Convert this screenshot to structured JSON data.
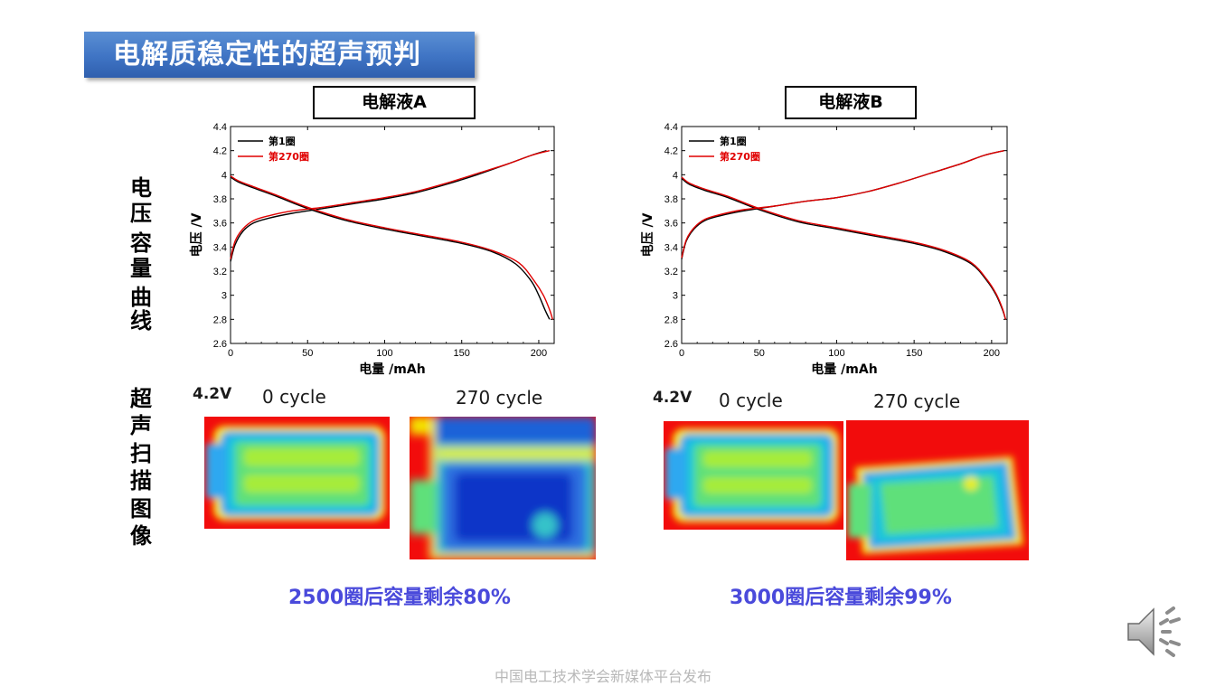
{
  "title": "电解质稳定性的超声预判",
  "panel_a": {
    "label": "电解液A",
    "result": "2500圈后容量剩余80%"
  },
  "panel_b": {
    "label": "电解液B",
    "result": "3000圈后容量剩余99%"
  },
  "row_labels": {
    "curve": [
      "电",
      "压",
      "容",
      "量",
      "曲",
      "线"
    ],
    "scan": [
      "超",
      "声",
      "扫",
      "描",
      "图",
      "像"
    ]
  },
  "scan": {
    "voltage": "4.2V",
    "cycle_0": "0 cycle",
    "cycle_270": "270 cycle"
  },
  "footer": "中国电工技术学会新媒体平台发布",
  "colors": {
    "banner": "#3f74c4",
    "cycle1": "#000000",
    "cycle270": "#e00000",
    "result_text": "#4a4adb"
  },
  "icons": {
    "speaker": "speaker-icon"
  },
  "chart_data": [
    {
      "type": "line",
      "xlabel": "电量 /mAh",
      "ylabel": "电压 /V",
      "xlim": [
        0,
        210
      ],
      "ylim": [
        2.6,
        4.4
      ],
      "xticks": [
        0,
        50,
        100,
        150,
        200
      ],
      "xtick_labels": [
        "0",
        "50",
        "100",
        "150",
        "200"
      ],
      "yticks": [
        2.6,
        2.8,
        3,
        3.2,
        3.4,
        3.6,
        3.8,
        4,
        4.2,
        4.4
      ],
      "ytick_labels": [
        "2.6",
        "2.8",
        "3",
        "3.2",
        "3.4",
        "3.6",
        "3.8",
        "4",
        "4.2",
        "4.4"
      ],
      "legend_position": "top-left",
      "series": [
        {
          "name": "第1圈",
          "color": "#000000",
          "charge": {
            "x": [
              0,
              3,
              8,
              15,
              25,
              40,
              60,
              80,
              100,
              120,
              140,
              160,
              180,
              195,
              205
            ],
            "y": [
              3.28,
              3.42,
              3.53,
              3.6,
              3.64,
              3.68,
              3.72,
              3.76,
              3.8,
              3.85,
              3.92,
              4.0,
              4.09,
              4.16,
              4.2
            ]
          },
          "discharge": {
            "x": [
              0,
              5,
              15,
              30,
              50,
              75,
              100,
              125,
              150,
              170,
              185,
              195,
              200,
              204,
              207
            ],
            "y": [
              3.98,
              3.94,
              3.89,
              3.82,
              3.72,
              3.62,
              3.55,
              3.49,
              3.43,
              3.36,
              3.26,
              3.12,
              3.0,
              2.88,
              2.8
            ]
          }
        },
        {
          "name": "第270圈",
          "color": "#e00000",
          "charge": {
            "x": [
              0,
              3,
              8,
              15,
              25,
              40,
              60,
              80,
              100,
              120,
              140,
              160,
              180,
              195,
              207
            ],
            "y": [
              3.3,
              3.45,
              3.55,
              3.62,
              3.66,
              3.7,
              3.73,
              3.77,
              3.81,
              3.86,
              3.93,
              4.01,
              4.09,
              4.16,
              4.2
            ]
          },
          "discharge": {
            "x": [
              0,
              5,
              15,
              30,
              50,
              75,
              100,
              125,
              150,
              170,
              187,
              197,
              203,
              207,
              209
            ],
            "y": [
              3.99,
              3.95,
              3.9,
              3.83,
              3.73,
              3.63,
              3.56,
              3.5,
              3.44,
              3.37,
              3.27,
              3.12,
              3.0,
              2.88,
              2.8
            ]
          }
        }
      ]
    },
    {
      "type": "line",
      "xlabel": "电量 /mAh",
      "ylabel": "电压 /V",
      "xlim": [
        0,
        210
      ],
      "ylim": [
        2.6,
        4.4
      ],
      "xticks": [
        0,
        50,
        100,
        150,
        200
      ],
      "xtick_labels": [
        "0",
        "50",
        "100",
        "150",
        "200"
      ],
      "yticks": [
        2.6,
        2.8,
        3,
        3.2,
        3.4,
        3.6,
        3.8,
        4,
        4.2,
        4.4
      ],
      "ytick_labels": [
        "2.6",
        "2.8",
        "3",
        "3.2",
        "3.4",
        "3.6",
        "3.8",
        "4",
        "4.2",
        "4.4"
      ],
      "legend_position": "top-left",
      "series": [
        {
          "name": "第1圈",
          "color": "#000000",
          "charge": {
            "x": [
              0,
              3,
              8,
              15,
              25,
              40,
              60,
              80,
              100,
              120,
              140,
              160,
              180,
              195,
              208
            ],
            "y": [
              3.3,
              3.45,
              3.55,
              3.62,
              3.66,
              3.7,
              3.74,
              3.78,
              3.81,
              3.86,
              3.93,
              4.01,
              4.09,
              4.16,
              4.2
            ]
          },
          "discharge": {
            "x": [
              0,
              5,
              15,
              30,
              50,
              75,
              100,
              125,
              150,
              170,
              187,
              197,
              203,
              207,
              209
            ],
            "y": [
              3.97,
              3.92,
              3.87,
              3.81,
              3.71,
              3.61,
              3.55,
              3.49,
              3.43,
              3.36,
              3.26,
              3.12,
              3.0,
              2.88,
              2.8
            ]
          }
        },
        {
          "name": "第270圈",
          "color": "#e00000",
          "charge": {
            "x": [
              0,
              3,
              8,
              15,
              25,
              40,
              60,
              80,
              100,
              120,
              140,
              160,
              180,
              195,
              208
            ],
            "y": [
              3.31,
              3.46,
              3.56,
              3.63,
              3.67,
              3.71,
              3.74,
              3.78,
              3.81,
              3.86,
              3.93,
              4.01,
              4.09,
              4.16,
              4.2
            ]
          },
          "discharge": {
            "x": [
              0,
              5,
              15,
              30,
              50,
              75,
              100,
              125,
              150,
              170,
              187,
              197,
              203,
              207,
              209
            ],
            "y": [
              3.98,
              3.93,
              3.88,
              3.82,
              3.72,
              3.62,
              3.56,
              3.5,
              3.44,
              3.37,
              3.27,
              3.13,
              3.01,
              2.89,
              2.8
            ]
          }
        }
      ]
    }
  ]
}
